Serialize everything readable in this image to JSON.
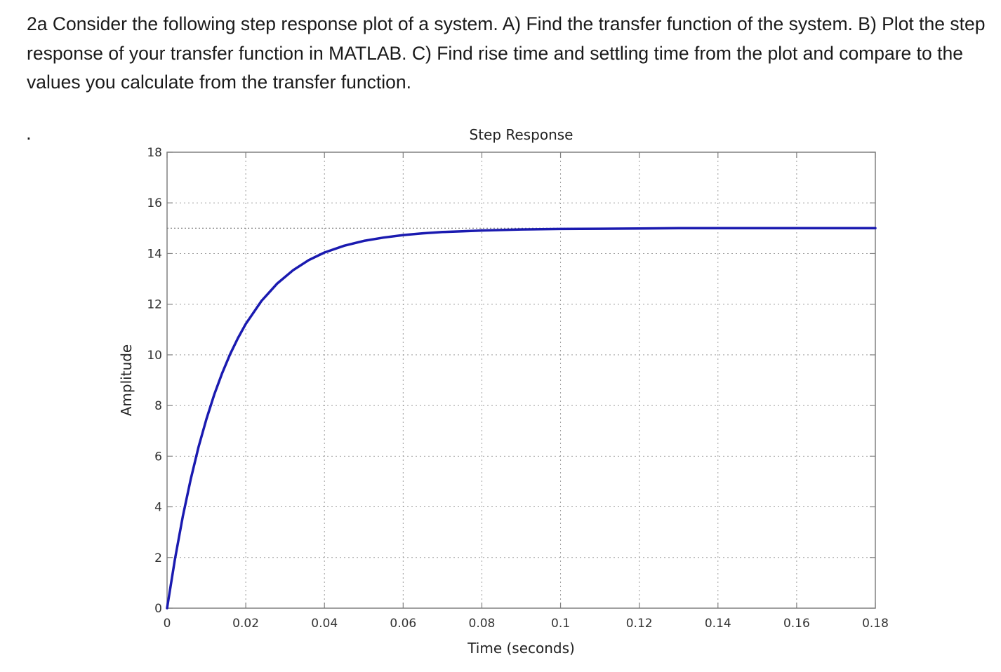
{
  "problem": {
    "text": "2a Consider the following step response plot of a system. A) Find the transfer function of the system.  B) Plot the step response of your transfer function in MATLAB.  C) Find rise time and settling time from the plot and compare to the values you calculate from the transfer function.",
    "stray_mark": "."
  },
  "chart_data": {
    "type": "line",
    "title": "Step Response",
    "xlabel": "Time (seconds)",
    "ylabel": "Amplitude",
    "xlim": [
      0,
      0.18
    ],
    "ylim": [
      0,
      18
    ],
    "x_ticks": [
      0,
      0.02,
      0.04,
      0.06,
      0.08,
      0.1,
      0.12,
      0.14,
      0.16,
      0.18
    ],
    "x_tick_labels": [
      "0",
      "0.02",
      "0.04",
      "0.06",
      "0.08",
      "0.1",
      "0.12",
      "0.14",
      "0.16",
      "0.18"
    ],
    "y_ticks": [
      0,
      2,
      4,
      6,
      8,
      10,
      12,
      14,
      16,
      18
    ],
    "y_tick_labels": [
      "0",
      "2",
      "4",
      "6",
      "8",
      "10",
      "12",
      "14",
      "16",
      "18"
    ],
    "grid": true,
    "reference_line": {
      "y": 15,
      "style": "dotted"
    },
    "series": [
      {
        "color": "#1a1ab0",
        "x": [
          0,
          0.002,
          0.004,
          0.006,
          0.008,
          0.01,
          0.012,
          0.014,
          0.016,
          0.018,
          0.02,
          0.024,
          0.028,
          0.032,
          0.036,
          0.04,
          0.045,
          0.05,
          0.055,
          0.06,
          0.065,
          0.07,
          0.075,
          0.08,
          0.09,
          0.1,
          0.11,
          0.12,
          0.13,
          0.14,
          0.15,
          0.16,
          0.17,
          0.18
        ],
        "y": [
          0,
          1.93,
          3.62,
          5.08,
          6.36,
          7.47,
          8.44,
          9.28,
          10.02,
          10.66,
          11.22,
          12.13,
          12.82,
          13.34,
          13.74,
          14.04,
          14.31,
          14.5,
          14.63,
          14.73,
          14.8,
          14.85,
          14.88,
          14.91,
          14.95,
          14.97,
          14.98,
          14.99,
          15.0,
          15.0,
          15.0,
          15.0,
          15.0,
          15.0
        ]
      }
    ]
  }
}
